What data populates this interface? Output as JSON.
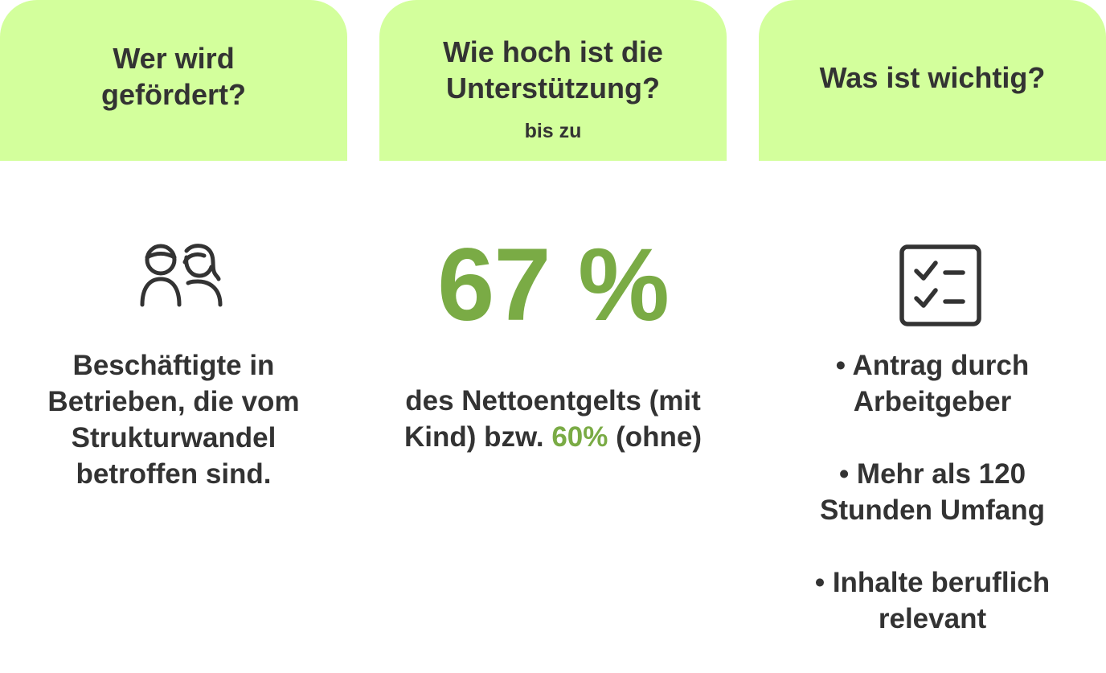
{
  "columns": [
    {
      "title_lines": [
        "Wer wird",
        "gefördert?"
      ],
      "icon": "people-icon",
      "body_lines": [
        "Beschäftigte in",
        "Betrieben, die vom",
        "Strukturwandel",
        "betroffen sind."
      ]
    },
    {
      "title_lines": [
        "Wie hoch ist die",
        "Unterstützung?"
      ],
      "subtitle": "bis zu",
      "highlight": "67 %",
      "body_line_1": "des Nettoentgelts (mit",
      "body_line_2_pre": "Kind) bzw. ",
      "body_line_2_accent": "60%",
      "body_line_2_post": " (ohne)"
    },
    {
      "title": "Was ist wichtig?",
      "icon": "checklist-icon",
      "bullets": [
        {
          "line1": "• Antrag durch",
          "line2": "Arbeitgeber"
        },
        {
          "line1": "• Mehr als 120",
          "line2": "Stunden Umfang"
        },
        {
          "line1": "• Inhalte beruflich",
          "line2": "relevant"
        }
      ]
    }
  ],
  "colors": {
    "header_background": "#d3ff9c",
    "accent": "#7aab45",
    "text": "#333333"
  }
}
